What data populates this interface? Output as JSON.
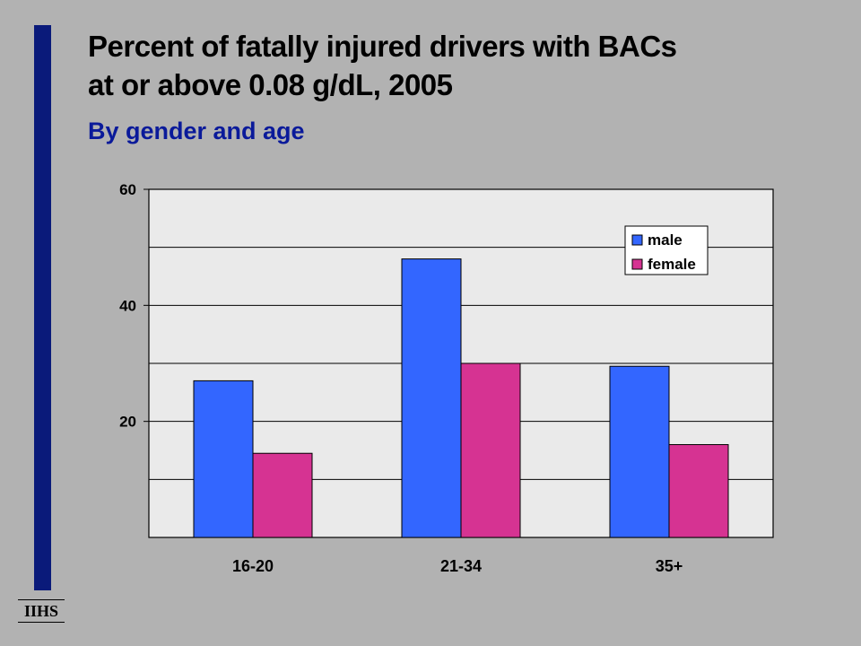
{
  "header": {
    "title_line1": "Percent of fatally injured drivers with BACs",
    "title_line2": "at or above 0.08 g/dL, 2005",
    "subtitle": "By gender and age"
  },
  "logo": {
    "text": "IIHS"
  },
  "colors": {
    "sidebar": "#0a1a7a",
    "subtitle": "#0a1a9a",
    "male": "#3366ff",
    "female": "#d63392",
    "plot_bg": "#eaeaea"
  },
  "chart_data": {
    "type": "bar",
    "categories": [
      "16-20",
      "21-34",
      "35+"
    ],
    "series": [
      {
        "name": "male",
        "values": [
          27,
          48,
          29.5
        ]
      },
      {
        "name": "female",
        "values": [
          14.5,
          30,
          16
        ]
      }
    ],
    "ylim": [
      0,
      60
    ],
    "yticks": [
      20,
      40,
      60
    ],
    "ygrid": [
      10,
      20,
      30,
      40,
      50,
      60
    ],
    "grid": true,
    "legend": "top-right",
    "xlabel": "",
    "ylabel": ""
  }
}
